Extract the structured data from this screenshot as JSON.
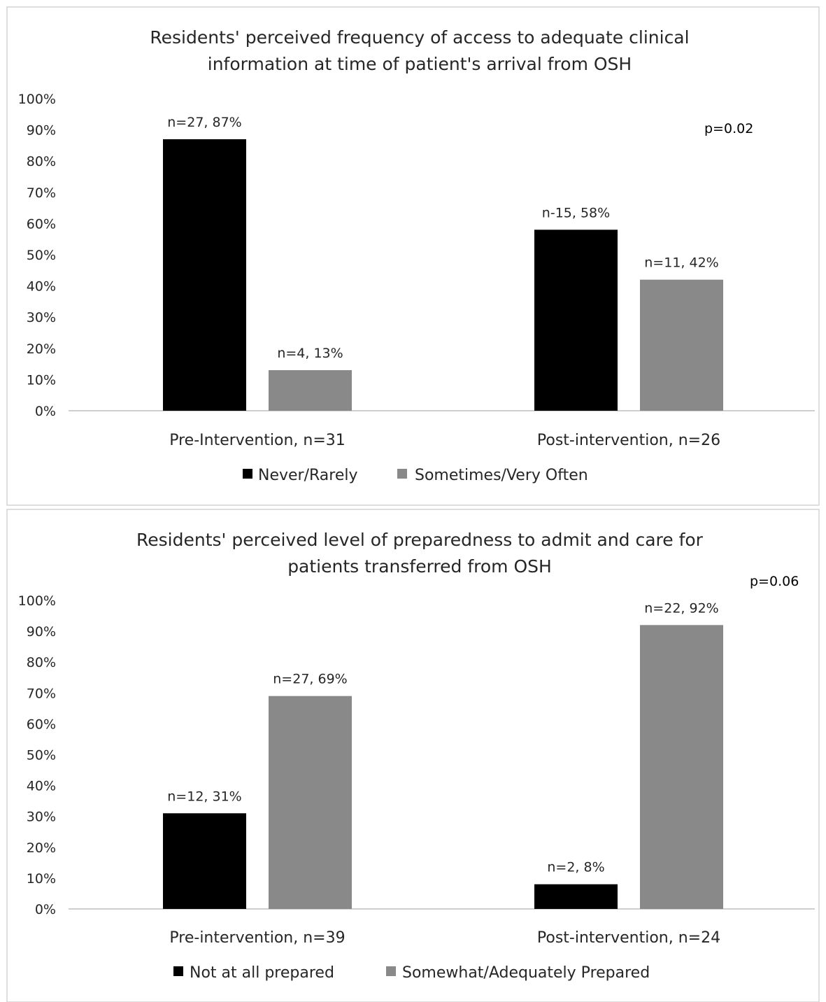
{
  "chart_data": [
    {
      "type": "bar",
      "title_lines": [
        "Residents' perceived frequency of access to adequate clinical",
        "information at time of patient's arrival from OSH"
      ],
      "categories": [
        "Pre-Intervention, n=31",
        "Post-intervention, n=26"
      ],
      "series": [
        {
          "name": "Never/Rarely",
          "color": "#000000",
          "values": [
            87,
            58
          ],
          "labels": [
            "n=27, 87%",
            "n-15, 58%"
          ]
        },
        {
          "name": "Sometimes/Very Often",
          "color": "#898989",
          "values": [
            13,
            42
          ],
          "labels": [
            "n=4, 13%",
            "n=11, 42%"
          ]
        }
      ],
      "yticks": [
        "0%",
        "10%",
        "20%",
        "30%",
        "40%",
        "50%",
        "60%",
        "70%",
        "80%",
        "90%",
        "100%"
      ],
      "ylim": [
        0,
        100
      ],
      "annotation": "p=0.02",
      "legend_position": "bottom",
      "grid": false
    },
    {
      "type": "bar",
      "title_lines": [
        "Residents' perceived level of preparedness to admit and care for",
        "patients transferred from OSH"
      ],
      "categories": [
        "Pre-intervention, n=39",
        "Post-intervention, n=24"
      ],
      "series": [
        {
          "name": "Not at all prepared",
          "color": "#000000",
          "values": [
            31,
            8
          ],
          "labels": [
            "n=12, 31%",
            "n=2, 8%"
          ]
        },
        {
          "name": "Somewhat/Adequately Prepared",
          "color": "#898989",
          "values": [
            69,
            92
          ],
          "labels": [
            "n=27, 69%",
            "n=22, 92%"
          ]
        }
      ],
      "yticks": [
        "0%",
        "10%",
        "20%",
        "30%",
        "40%",
        "50%",
        "60%",
        "70%",
        "80%",
        "90%",
        "100%"
      ],
      "ylim": [
        0,
        100
      ],
      "annotation": "p=0.06",
      "legend_position": "bottom",
      "grid": false
    }
  ]
}
